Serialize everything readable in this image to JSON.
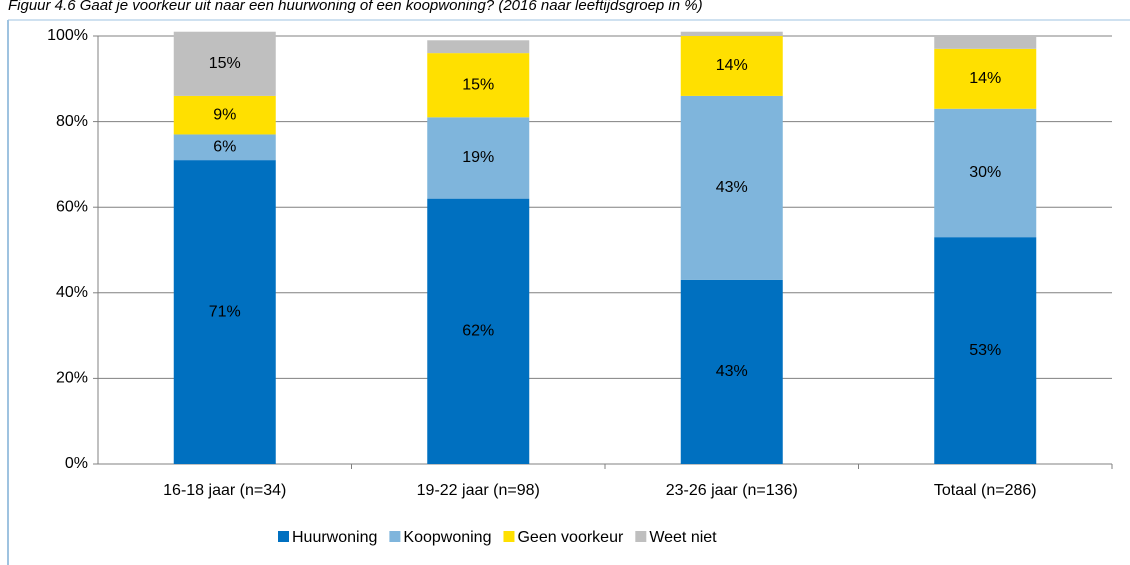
{
  "chart_data": {
    "type": "stacked_bar",
    "title": "Figuur 4.6 Gaat je voorkeur uit naar een huurwoning of een koopwoning? (2016 naar leeftijdsgroep in %)",
    "categories": [
      "16-18 jaar (n=34)",
      "19-22 jaar (n=98)",
      "23-26 jaar (n=136)",
      "Totaal (n=286)"
    ],
    "series": [
      {
        "name": "Huurwoning",
        "color": "#0070c0",
        "values": [
          71,
          62,
          43,
          53
        ],
        "value_labels": [
          "71%",
          "62%",
          "43%",
          "53%"
        ]
      },
      {
        "name": "Koopwoning",
        "color": "#7fb5dc",
        "values": [
          6,
          19,
          43,
          30
        ],
        "value_labels": [
          "6%",
          "19%",
          "43%",
          "30%"
        ]
      },
      {
        "name": "Geen voorkeur",
        "color": "#ffe000",
        "values": [
          9,
          15,
          14,
          14
        ],
        "value_labels": [
          "9%",
          "15%",
          "14%",
          "14%"
        ]
      },
      {
        "name": "Weet niet",
        "color": "#bfbfbf",
        "values": [
          15,
          3,
          1,
          3
        ],
        "value_labels": [
          "15%",
          null,
          null,
          null
        ]
      }
    ],
    "ylim": [
      0,
      100
    ],
    "yticks": [
      {
        "value": 0,
        "label": "0%"
      },
      {
        "value": 20,
        "label": "20%"
      },
      {
        "value": 40,
        "label": "40%"
      },
      {
        "value": 60,
        "label": "60%"
      },
      {
        "value": 80,
        "label": "80%"
      },
      {
        "value": 100,
        "label": "100%"
      }
    ],
    "grid": true,
    "legend": "bottom"
  }
}
